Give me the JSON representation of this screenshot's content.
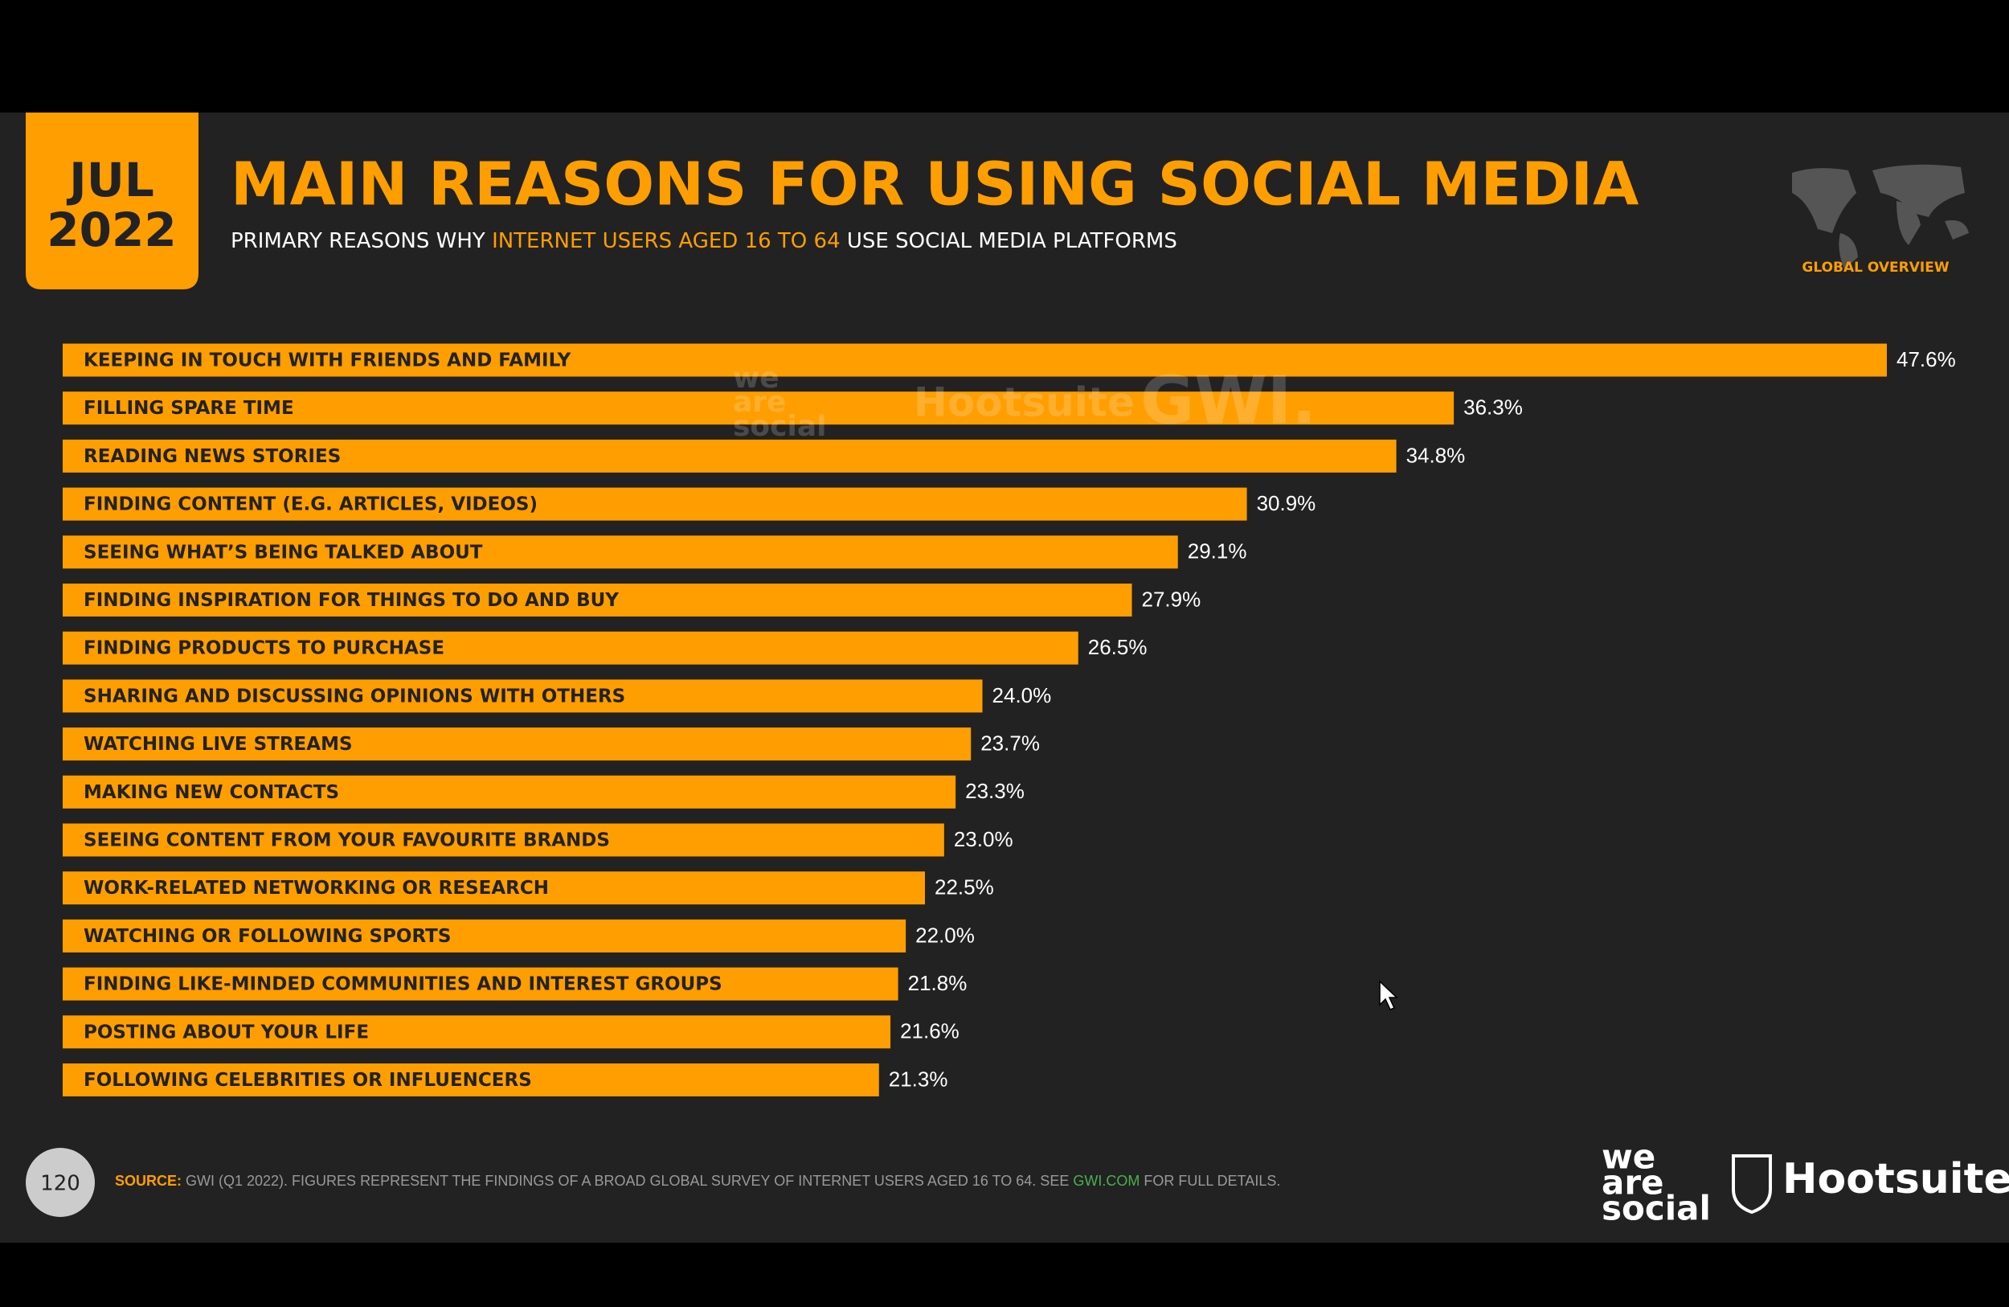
{
  "header": {
    "date_month": "JUL",
    "date_year": "2022",
    "title": "MAIN REASONS FOR USING SOCIAL MEDIA",
    "subtitle": [
      "PRIMARY REASONS WHY ",
      "INTERNET USERS AGED 16 TO 64",
      " USE SOCIAL MEDIA PLATFORMS"
    ],
    "region": "GLOBAL OVERVIEW"
  },
  "watermark": {
    "we_are_social": [
      "we",
      "are",
      "social"
    ],
    "hootsuite": "Hootsuite",
    "gwi": "GWI."
  },
  "chart_data": {
    "type": "bar",
    "orientation": "horizontal",
    "color": "#ff9e00",
    "categories": [
      "KEEPING IN TOUCH WITH FRIENDS AND FAMILY",
      "FILLING SPARE TIME",
      "READING NEWS STORIES",
      "FINDING CONTENT (E.G. ARTICLES, VIDEOS)",
      "SEEING WHAT’S BEING TALKED ABOUT",
      "FINDING INSPIRATION FOR THINGS TO DO AND BUY",
      "FINDING PRODUCTS TO PURCHASE",
      "SHARING AND DISCUSSING OPINIONS WITH OTHERS",
      "WATCHING LIVE STREAMS",
      "MAKING NEW CONTACTS",
      "SEEING CONTENT FROM YOUR FAVOURITE BRANDS",
      "WORK-RELATED NETWORKING OR RESEARCH",
      "WATCHING OR FOLLOWING SPORTS",
      "FINDING LIKE-MINDED COMMUNITIES AND INTEREST GROUPS",
      "POSTING ABOUT YOUR LIFE",
      "FOLLOWING CELEBRITIES OR INFLUENCERS"
    ],
    "values": [
      47.6,
      36.3,
      34.8,
      30.9,
      29.1,
      27.9,
      26.5,
      24.0,
      23.7,
      23.3,
      23.0,
      22.5,
      22.0,
      21.8,
      21.6,
      21.3
    ],
    "value_labels": [
      "47.6%",
      "36.3%",
      "34.8%",
      "30.9%",
      "29.1%",
      "27.9%",
      "26.5%",
      "24.0%",
      "23.7%",
      "23.3%",
      "23.0%",
      "22.5%",
      "22.0%",
      "21.8%",
      "21.6%",
      "21.3%"
    ]
  },
  "footer": {
    "page": "120",
    "source": [
      "SOURCE:",
      " GWI (Q1 2022). FIGURES REPRESENT THE FINDINGS OF A BROAD GLOBAL SURVEY OF INTERNET USERS AGED 16 TO 64. SEE ",
      "GWI.COM",
      " FOR FULL DETAILS."
    ],
    "logo_we_are_social": [
      "we",
      "are",
      "social"
    ],
    "logo_hootsuite": "Hootsuite"
  }
}
